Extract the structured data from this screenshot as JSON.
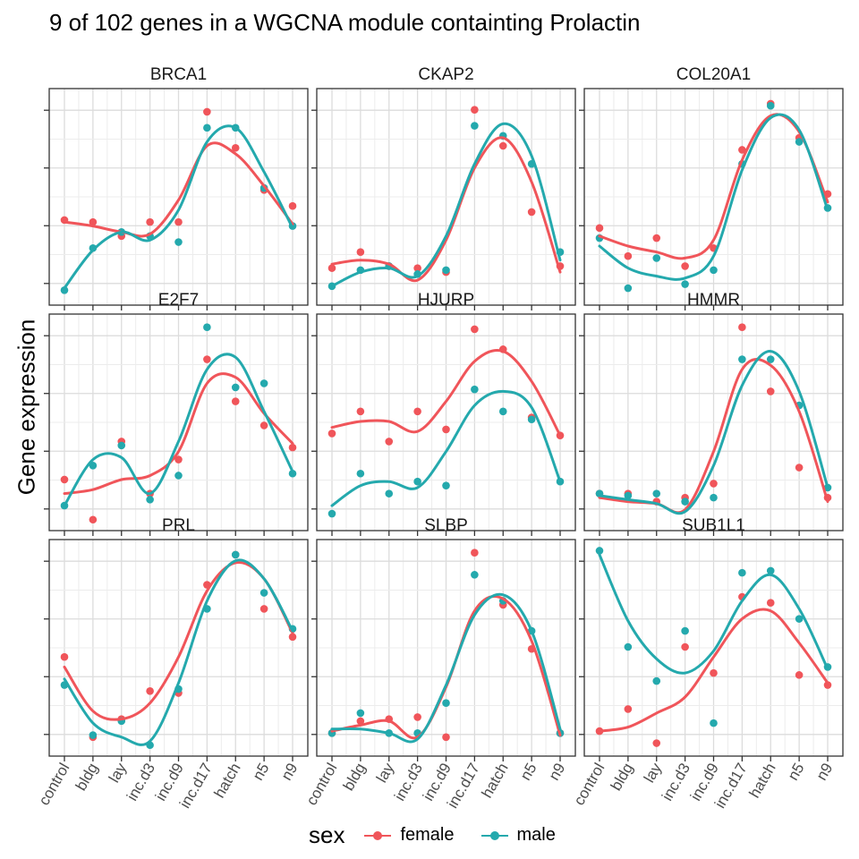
{
  "title": "9 of 102 genes in a WGCNA module containting Prolactin",
  "ylabel": "Gene expression",
  "legend": {
    "title": "sex",
    "items": [
      {
        "label": "female",
        "color": "#f0555a"
      },
      {
        "label": "male",
        "color": "#24a9ad"
      }
    ]
  },
  "chart_data": {
    "type": "scatter",
    "facets": 9,
    "categories": [
      "control",
      "bldg",
      "lay",
      "inc.d3",
      "inc.d9",
      "inc.d17",
      "hatch",
      "n5",
      "n9"
    ],
    "ylim": [
      0,
      1
    ],
    "grid": true,
    "legend_position": "bottom",
    "panels": [
      {
        "title": "BRCA1",
        "series": [
          {
            "name": "female",
            "points": [
              0.38,
              0.37,
              0.3,
              0.37,
              0.37,
              0.92,
              0.74,
              0.53,
              0.45
            ],
            "smooth": [
              0.37,
              0.35,
              0.32,
              0.31,
              0.48,
              0.75,
              0.71,
              0.55,
              0.36
            ]
          },
          {
            "name": "male",
            "points": [
              0.03,
              0.24,
              0.32,
              0.3,
              0.27,
              0.84,
              0.84,
              0.54,
              0.35
            ],
            "smooth": [
              0.04,
              0.23,
              0.32,
              0.28,
              0.43,
              0.77,
              0.84,
              0.62,
              0.34
            ]
          }
        ]
      },
      {
        "title": "CKAP2",
        "series": [
          {
            "name": "female",
            "points": [
              0.14,
              0.22,
              0.15,
              0.14,
              0.12,
              0.93,
              0.75,
              0.42,
              0.15
            ],
            "smooth": [
              0.16,
              0.18,
              0.16,
              0.08,
              0.28,
              0.64,
              0.79,
              0.57,
              0.12
            ]
          },
          {
            "name": "male",
            "points": [
              0.05,
              0.13,
              0.15,
              0.11,
              0.13,
              0.85,
              0.8,
              0.66,
              0.22
            ],
            "smooth": [
              0.05,
              0.12,
              0.14,
              0.1,
              0.3,
              0.66,
              0.86,
              0.7,
              0.18
            ]
          }
        ]
      },
      {
        "title": "COL20A1",
        "series": [
          {
            "name": "female",
            "points": [
              0.34,
              0.2,
              0.29,
              0.15,
              0.24,
              0.73,
              0.96,
              0.79,
              0.51
            ],
            "smooth": [
              0.3,
              0.25,
              0.22,
              0.19,
              0.28,
              0.68,
              0.9,
              0.82,
              0.47
            ]
          },
          {
            "name": "male",
            "points": [
              0.29,
              0.04,
              0.19,
              0.06,
              0.13,
              0.66,
              0.95,
              0.77,
              0.44
            ],
            "smooth": [
              0.25,
              0.14,
              0.1,
              0.09,
              0.2,
              0.63,
              0.89,
              0.83,
              0.43
            ]
          }
        ]
      },
      {
        "title": "E2F7",
        "series": [
          {
            "name": "female",
            "points": [
              0.21,
              0.01,
              0.4,
              0.14,
              0.31,
              0.81,
              0.6,
              0.48,
              0.37
            ],
            "smooth": [
              0.14,
              0.16,
              0.21,
              0.23,
              0.35,
              0.69,
              0.72,
              0.54,
              0.39
            ]
          },
          {
            "name": "male",
            "points": [
              0.08,
              0.28,
              0.38,
              0.11,
              0.23,
              0.97,
              0.67,
              0.69,
              0.24
            ],
            "smooth": [
              0.08,
              0.31,
              0.32,
              0.14,
              0.4,
              0.76,
              0.82,
              0.55,
              0.25
            ]
          }
        ]
      },
      {
        "title": "HJURP",
        "series": [
          {
            "name": "female",
            "points": [
              0.44,
              0.55,
              0.4,
              0.55,
              0.46,
              0.96,
              0.86,
              0.52,
              0.43
            ],
            "smooth": [
              0.47,
              0.5,
              0.5,
              0.45,
              0.6,
              0.8,
              0.85,
              0.7,
              0.43
            ]
          },
          {
            "name": "male",
            "points": [
              0.04,
              0.24,
              0.14,
              0.2,
              0.18,
              0.66,
              0.55,
              0.51,
              0.2
            ],
            "smooth": [
              0.08,
              0.18,
              0.2,
              0.17,
              0.35,
              0.58,
              0.65,
              0.57,
              0.2
            ]
          }
        ]
      },
      {
        "title": "HMMR",
        "series": [
          {
            "name": "female",
            "points": [
              0.14,
              0.14,
              0.1,
              0.12,
              0.19,
              0.97,
              0.65,
              0.27,
              0.12
            ],
            "smooth": [
              0.12,
              0.1,
              0.09,
              0.06,
              0.35,
              0.76,
              0.78,
              0.55,
              0.1
            ]
          },
          {
            "name": "male",
            "points": [
              0.14,
              0.13,
              0.14,
              0.1,
              0.12,
              0.81,
              0.81,
              0.58,
              0.17
            ],
            "smooth": [
              0.13,
              0.11,
              0.09,
              0.05,
              0.28,
              0.68,
              0.85,
              0.65,
              0.17
            ]
          }
        ]
      },
      {
        "title": "PRL",
        "series": [
          {
            "name": "female",
            "points": [
              0.45,
              0.05,
              0.14,
              0.28,
              0.27,
              0.81,
              0.96,
              0.69,
              0.55
            ],
            "smooth": [
              0.4,
              0.18,
              0.14,
              0.22,
              0.45,
              0.78,
              0.92,
              0.84,
              0.57
            ]
          },
          {
            "name": "male",
            "points": [
              0.31,
              0.06,
              0.13,
              0.01,
              0.29,
              0.69,
              0.96,
              0.77,
              0.59
            ],
            "smooth": [
              0.34,
              0.12,
              0.05,
              0.03,
              0.32,
              0.73,
              0.93,
              0.84,
              0.58
            ]
          }
        ]
      },
      {
        "title": "SLBP",
        "series": [
          {
            "name": "female",
            "points": [
              0.07,
              0.13,
              0.14,
              0.15,
              0.05,
              0.97,
              0.71,
              0.49,
              0.07
            ],
            "smooth": [
              0.08,
              0.11,
              0.13,
              0.05,
              0.3,
              0.68,
              0.74,
              0.53,
              0.06
            ]
          },
          {
            "name": "male",
            "points": [
              0.07,
              0.17,
              0.07,
              0.07,
              0.22,
              0.86,
              0.73,
              0.58,
              0.07
            ],
            "smooth": [
              0.09,
              0.09,
              0.07,
              0.04,
              0.31,
              0.66,
              0.76,
              0.58,
              0.09
            ]
          }
        ]
      },
      {
        "title": "SUB1L1",
        "series": [
          {
            "name": "female",
            "points": [
              0.08,
              0.19,
              0.02,
              0.5,
              0.37,
              0.75,
              0.72,
              0.36,
              0.31
            ],
            "smooth": [
              0.08,
              0.1,
              0.17,
              0.25,
              0.45,
              0.64,
              0.68,
              0.52,
              0.32
            ]
          },
          {
            "name": "male",
            "points": [
              0.98,
              0.5,
              0.33,
              0.58,
              0.12,
              0.87,
              0.88,
              0.64,
              0.4
            ],
            "smooth": [
              0.96,
              0.63,
              0.44,
              0.37,
              0.48,
              0.73,
              0.86,
              0.69,
              0.39
            ]
          }
        ]
      }
    ]
  }
}
